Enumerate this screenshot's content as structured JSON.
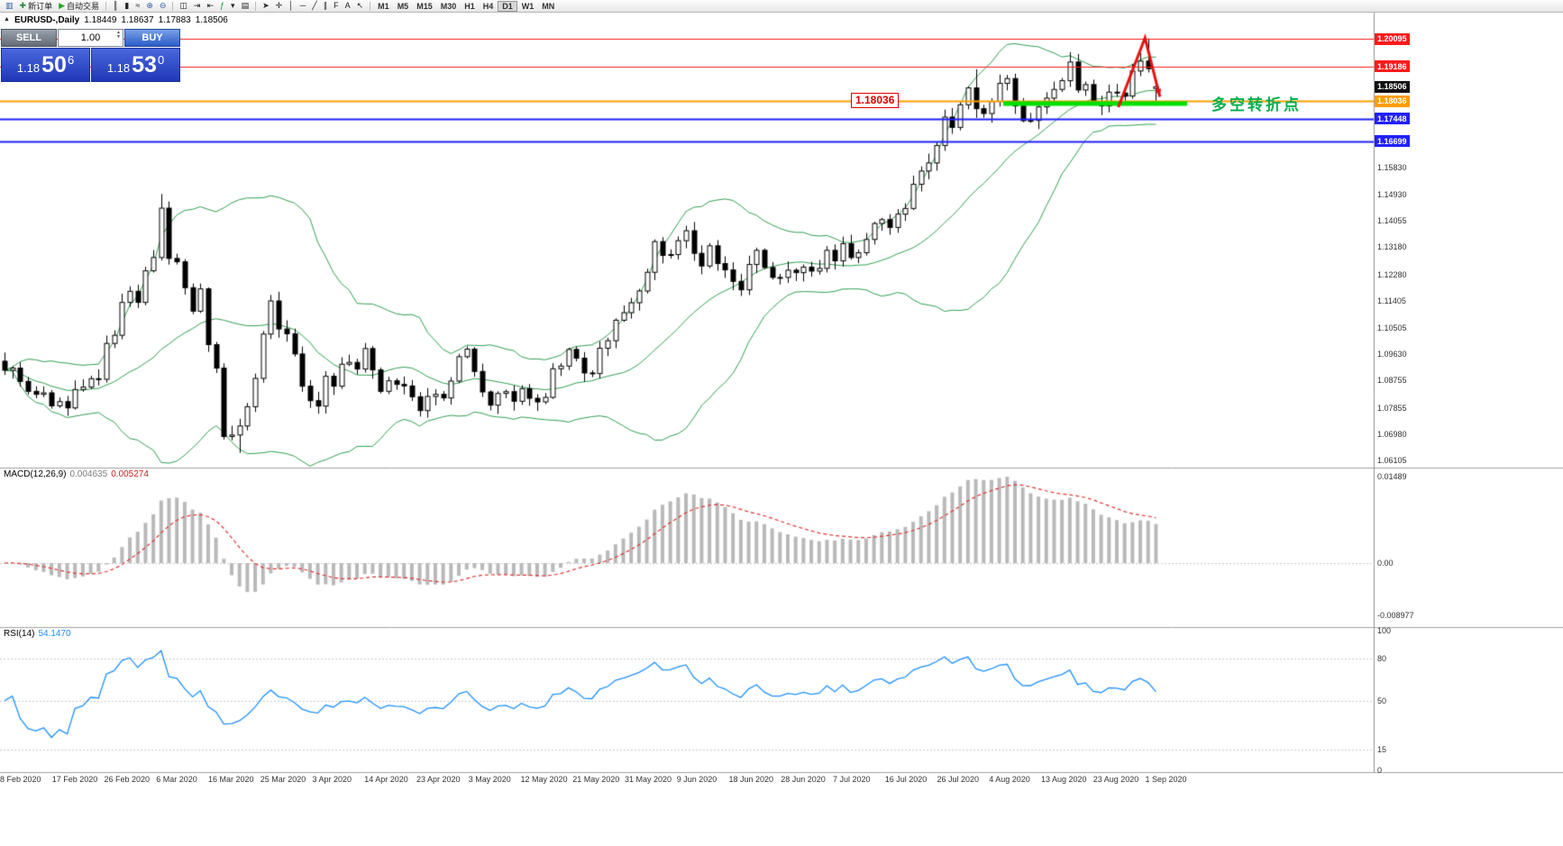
{
  "toolbar": {
    "groups": [
      {
        "items": [
          {
            "name": "chart-window-button",
            "glyph": "▥",
            "glyph_color": "#355c9e"
          },
          {
            "name": "new-order-button",
            "glyph": "✚",
            "glyph_color": "#1f8f3a",
            "label": "新订单"
          },
          {
            "name": "autotrading-button",
            "glyph": "▶",
            "glyph_color": "#2aa52a",
            "label": "自动交易"
          }
        ]
      },
      {
        "items": [
          {
            "name": "bar-chart-button",
            "glyph": "║"
          },
          {
            "name": "candlestick-chart-button",
            "glyph": "▮"
          },
          {
            "name": "line-chart-button",
            "glyph": "≈"
          },
          {
            "name": "zoom-in-button",
            "glyph": "⊕",
            "glyph_color": "#355c9e"
          },
          {
            "name": "zoom-out-button",
            "glyph": "⊖",
            "glyph_color": "#355c9e"
          }
        ]
      },
      {
        "items": [
          {
            "name": "tile-windows-button",
            "glyph": "◫"
          },
          {
            "name": "auto-scroll-button",
            "glyph": "⇥"
          },
          {
            "name": "chart-shift-button",
            "glyph": "⇤"
          },
          {
            "name": "indicators-button",
            "glyph": "ƒ",
            "glyph_color": "#1f8f3a"
          },
          {
            "name": "periods-button",
            "glyph": "▾"
          },
          {
            "name": "templates-button",
            "glyph": "▤"
          }
        ]
      },
      {
        "items": [
          {
            "name": "cursor-button",
            "glyph": "➤"
          },
          {
            "name": "crosshair-button",
            "glyph": "✛"
          },
          {
            "name": "vertical-line-button",
            "glyph": "│"
          },
          {
            "name": "horizontal-line-button",
            "glyph": "─"
          },
          {
            "name": "trendline-button",
            "glyph": "╱"
          },
          {
            "name": "channel-button",
            "glyph": "∥"
          },
          {
            "name": "fibonacci-button",
            "glyph": "F"
          },
          {
            "name": "text-button",
            "glyph": "A"
          },
          {
            "name": "arrows-button",
            "glyph": "↖"
          }
        ]
      },
      {
        "items": [
          {
            "name": "timeframe-m1",
            "label": "M1",
            "tf": true
          },
          {
            "name": "timeframe-m5",
            "label": "M5",
            "tf": true
          },
          {
            "name": "timeframe-m15",
            "label": "M15",
            "tf": true
          },
          {
            "name": "timeframe-m30",
            "label": "M30",
            "tf": true
          },
          {
            "name": "timeframe-h1",
            "label": "H1",
            "tf": true
          },
          {
            "name": "timeframe-h4",
            "label": "H4",
            "tf": true
          },
          {
            "name": "timeframe-d1",
            "label": "D1",
            "tf": true,
            "active": true
          },
          {
            "name": "timeframe-w1",
            "label": "W1",
            "tf": true
          },
          {
            "name": "timeframe-mn",
            "label": "MN",
            "tf": true
          }
        ]
      }
    ]
  },
  "chart_header": {
    "toggle_glyph": "▲",
    "symbol_period": "EURUSD-,Daily",
    "open": "1.18449",
    "high": "1.18637",
    "low": "1.17883",
    "close": "1.18506"
  },
  "one_click": {
    "sell_label": "SELL",
    "buy_label": "BUY",
    "volume": "1.00",
    "bid": {
      "prefix": "1.18",
      "big": "50",
      "sup": "6"
    },
    "ask": {
      "prefix": "1.18",
      "big": "53",
      "sup": "0"
    }
  },
  "annotations": {
    "price_label": "1.18036",
    "cn_text": "多空转折点",
    "cn_color": "#00ae4d"
  },
  "indicators": {
    "macd_name": "MACD(12,26,9)",
    "macd_value_main": "0.004635",
    "macd_value_signal": "0.005274",
    "macd_axis": [
      "0.01489",
      "0.00",
      "-0.008977"
    ],
    "rsi_name": "RSI(14)",
    "rsi_value": "54.1470",
    "rsi_axis": [
      "100",
      "80",
      "50",
      "15",
      "0"
    ],
    "rsi_levels": [
      80,
      50,
      15
    ]
  },
  "price_axis": {
    "boxes": [
      {
        "value": "1.20095",
        "bg": "#ff1a1a"
      },
      {
        "value": "1.19186",
        "bg": "#ff1a1a"
      },
      {
        "value": "1.18506",
        "bg": "#111111"
      },
      {
        "value": "1.18036",
        "bg": "#ff9d00"
      },
      {
        "value": "1.17448",
        "bg": "#2020ff"
      },
      {
        "value": "1.16699",
        "bg": "#2020ff"
      }
    ],
    "ticks": [
      "1.15830",
      "1.14930",
      "1.14055",
      "1.13180",
      "1.12280",
      "1.11405",
      "1.10505",
      "1.09630",
      "1.08755",
      "1.07855",
      "1.06980",
      "1.06105"
    ]
  },
  "date_axis": {
    "labels": [
      "8 Feb 2020",
      "17 Feb 2020",
      "26 Feb 2020",
      "6 Mar 2020",
      "16 Mar 2020",
      "25 Mar 2020",
      "3 Apr 2020",
      "14 Apr 2020",
      "23 Apr 2020",
      "3 May 2020",
      "12 May 2020",
      "21 May 2020",
      "31 May 2020",
      "9 Jun 2020",
      "18 Jun 2020",
      "28 Jun 2020",
      "7 Jul 2020",
      "16 Jul 2020",
      "26 Jul 2020",
      "4 Aug 2020",
      "13 Aug 2020",
      "23 Aug 2020",
      "1 Sep 2020"
    ]
  },
  "chart_data": {
    "type": "candlestick",
    "symbol": "EURUSD",
    "timeframe": "Daily",
    "closes": [
      1.091,
      1.0917,
      1.0873,
      1.084,
      1.083,
      1.0835,
      1.0792,
      1.0806,
      1.0785,
      1.0846,
      1.0854,
      1.0882,
      1.088,
      1.0999,
      1.1026,
      1.1135,
      1.1172,
      1.1135,
      1.124,
      1.1284,
      1.1448,
      1.1281,
      1.127,
      1.1184,
      1.1106,
      1.118,
      1.0995,
      1.0917,
      1.069,
      1.0695,
      1.0725,
      1.0789,
      1.0883,
      1.103,
      1.114,
      1.1047,
      1.1031,
      1.0964,
      1.0857,
      1.0809,
      1.0791,
      1.089,
      1.0857,
      1.093,
      1.0936,
      1.0914,
      1.0982,
      1.0911,
      1.084,
      1.0875,
      1.0863,
      1.0858,
      1.0822,
      1.0776,
      1.0823,
      1.083,
      1.0818,
      1.0874,
      1.0955,
      1.098,
      1.0906,
      1.0838,
      1.0794,
      1.0833,
      1.0839,
      1.0807,
      1.0849,
      1.0817,
      1.0805,
      1.082,
      1.0915,
      1.0924,
      1.0979,
      1.095,
      1.0901,
      1.0899,
      1.0983,
      1.1008,
      1.1076,
      1.1101,
      1.1134,
      1.1173,
      1.1235,
      1.1337,
      1.1291,
      1.1294,
      1.134,
      1.1373,
      1.1298,
      1.1256,
      1.1323,
      1.1264,
      1.1243,
      1.1205,
      1.1177,
      1.1261,
      1.1308,
      1.1251,
      1.1218,
      1.1218,
      1.1242,
      1.1234,
      1.1252,
      1.1239,
      1.1248,
      1.1308,
      1.1273,
      1.133,
      1.1284,
      1.13,
      1.1344,
      1.1397,
      1.141,
      1.1384,
      1.1428,
      1.1447,
      1.1527,
      1.1571,
      1.1598,
      1.1656,
      1.175,
      1.1716,
      1.1791,
      1.1847,
      1.1778,
      1.1762,
      1.1802,
      1.1862,
      1.1878,
      1.1787,
      1.1738,
      1.1739,
      1.1784,
      1.1813,
      1.1842,
      1.1871,
      1.1933,
      1.184,
      1.1858,
      1.1796,
      1.1787,
      1.1833,
      1.183,
      1.182,
      1.1903,
      1.1936,
      1.1911,
      1.1851
    ],
    "open_overrides": {
      "147": 1.18449
    },
    "wick_overrides": {
      "20": {
        "h": 1.1495
      },
      "28": {
        "l": 1.068
      },
      "30": {
        "l": 1.0636
      },
      "124": {
        "h": 1.1909
      },
      "136": {
        "h": 1.1966
      },
      "146": {
        "h": 1.2011,
        "l": 1.1898
      },
      "147": {
        "h": 1.18637,
        "l": 1.17883
      }
    },
    "bollinger": {
      "period": 20,
      "deviation": 2
    },
    "macd": {
      "fast": 12,
      "slow": 26,
      "signal": 9
    },
    "rsi": {
      "period": 14
    },
    "hlines": [
      {
        "price": 1.20095,
        "color": "#ff1a1a",
        "width": 1
      },
      {
        "price": 1.19186,
        "color": "#ff1a1a",
        "width": 1
      },
      {
        "price": 1.18036,
        "color": "#ff9d00",
        "width": 2
      },
      {
        "price": 1.17448,
        "color": "#2020ff",
        "width": 2
      },
      {
        "price": 1.16699,
        "color": "#2020ff",
        "width": 2
      }
    ],
    "support_segment": {
      "bar_start": 127.5,
      "bar_end": 151,
      "price": 1.1795,
      "color": "#00e000",
      "width": 5
    },
    "arrow": {
      "points": [
        [
          142.2,
          1.1783
        ],
        [
          145.6,
          1.2013
        ],
        [
          147.5,
          1.1818
        ]
      ],
      "color": "#e81010",
      "width": 3
    },
    "styles": {
      "bull": "#ffffff",
      "bear": "#000000",
      "outline": "#000000",
      "bands": "#2f9e4f",
      "macd_hist": "#b9b9b9",
      "macd_signal": "#e03131",
      "rsi": "#1e90ff"
    }
  }
}
